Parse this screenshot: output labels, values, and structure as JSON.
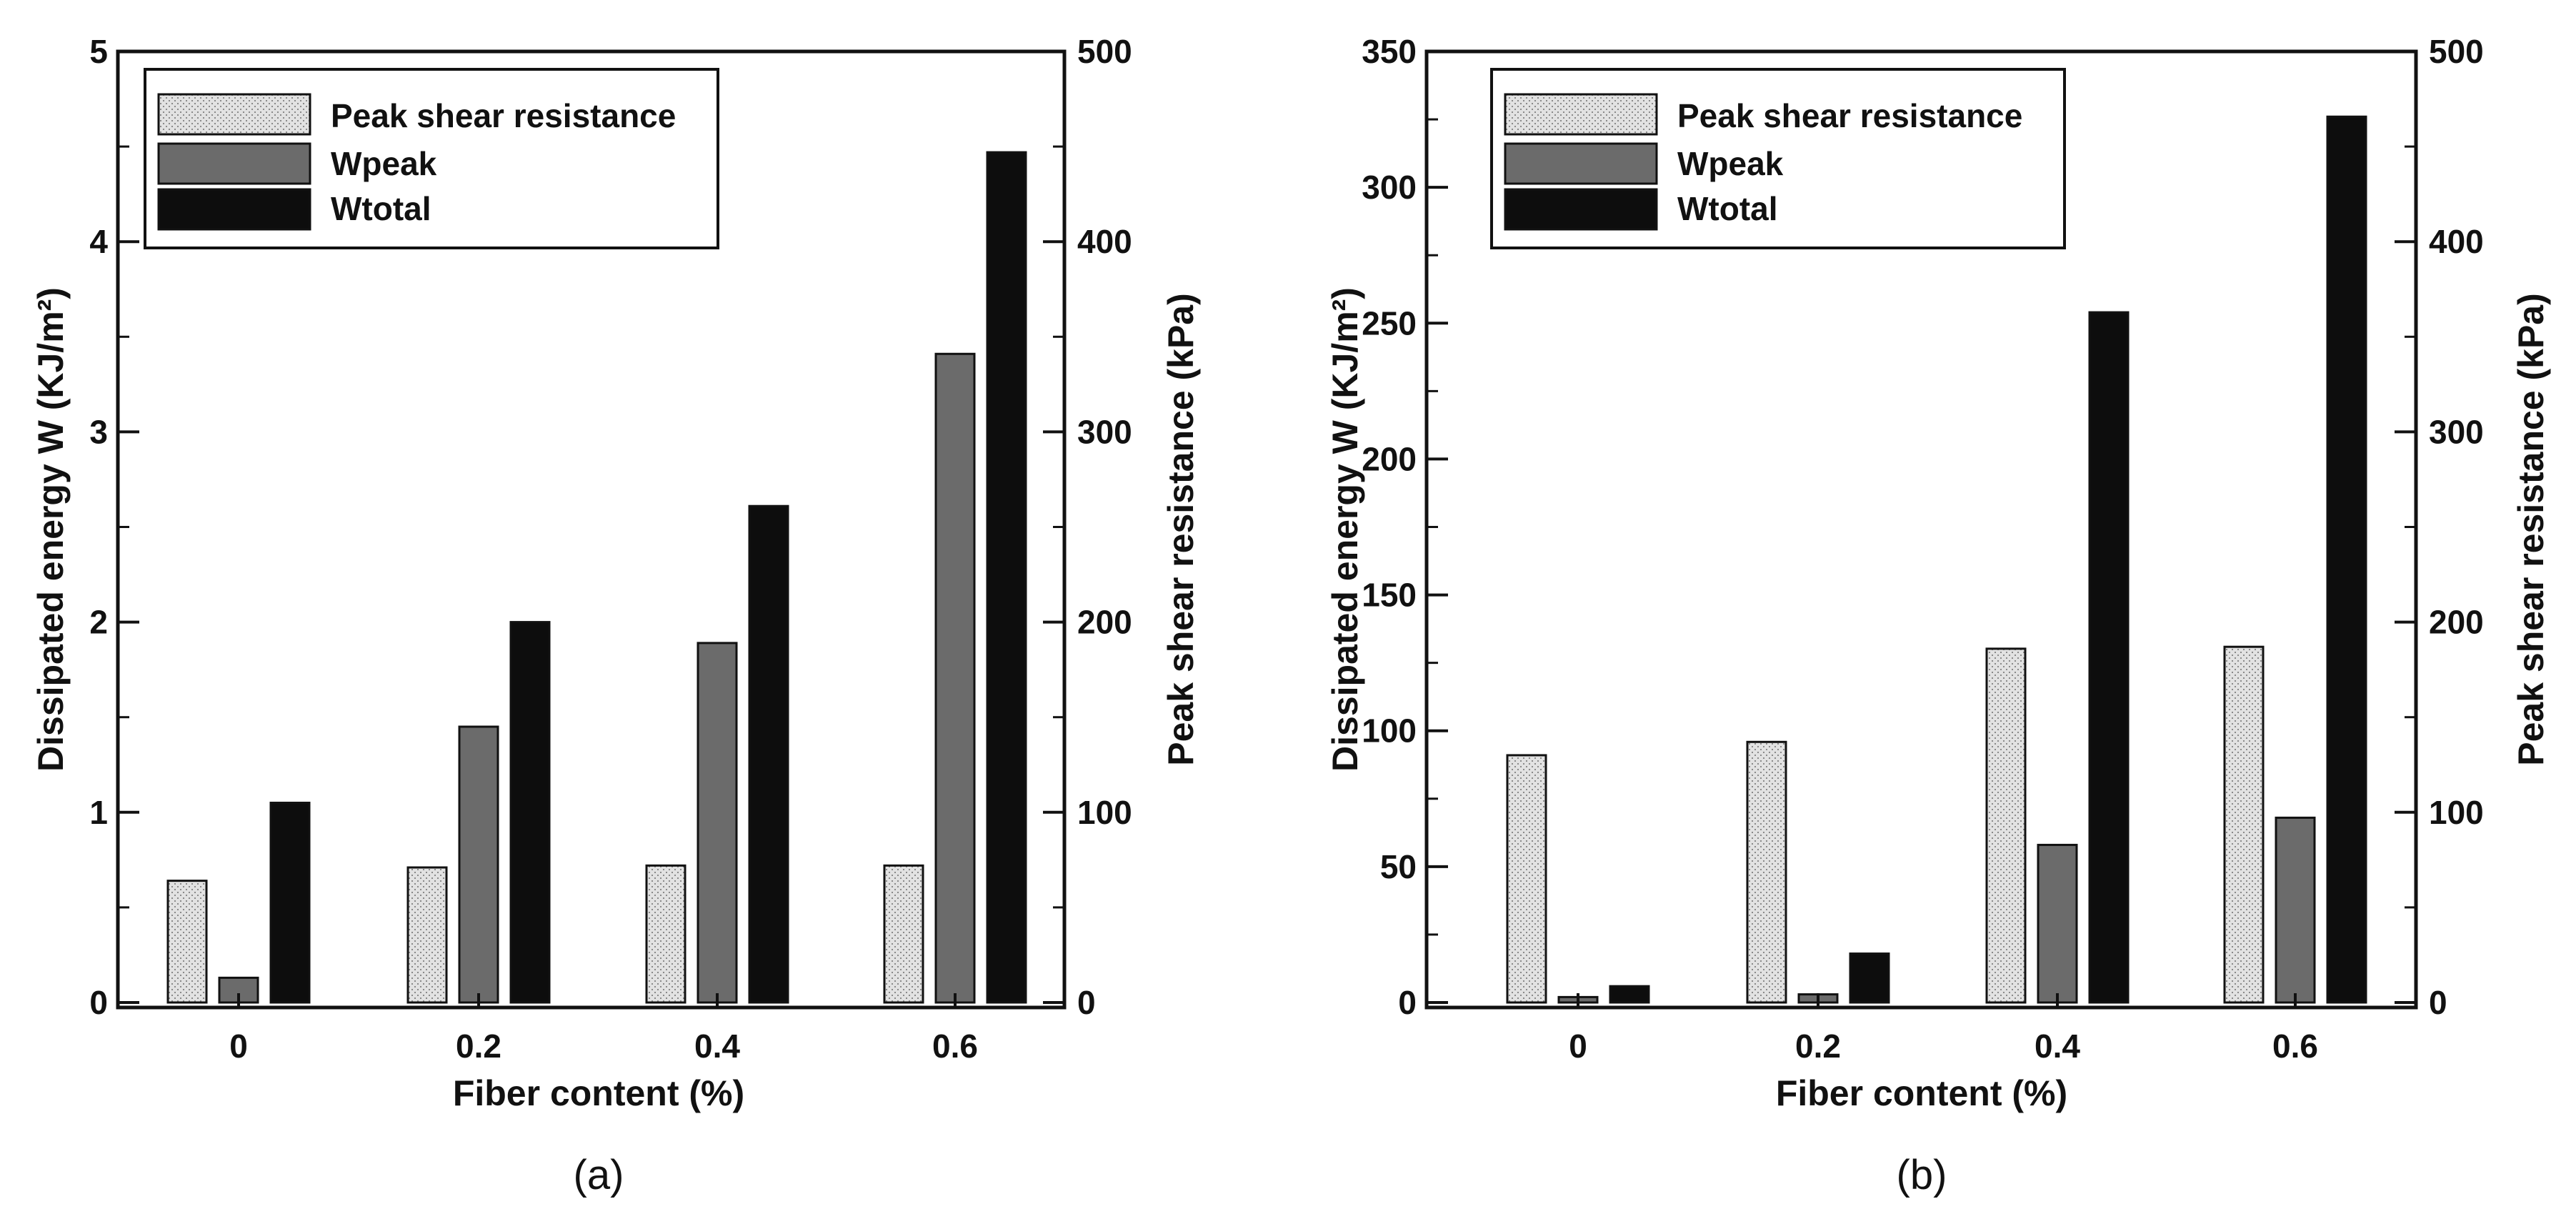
{
  "colors": {
    "peak_shear_resistance": "#e2e2e2",
    "wpeak": "#6b6b6b",
    "wtotal": "#0d0d0d",
    "axis": "#111111"
  },
  "chart_data": [
    {
      "type": "bar",
      "caption": "(a)",
      "categories": [
        "0",
        "0.2",
        "0.4",
        "0.6"
      ],
      "xlabel": "Fiber content (%)",
      "ylabel": "Dissipated energy W (KJ/m²)",
      "ylabel_right": "Peak shear resistance (kPa)",
      "ylim": [
        0,
        5
      ],
      "yticks": [
        "0",
        "1",
        "2",
        "3",
        "4",
        "5"
      ],
      "ylim_right": [
        0,
        500
      ],
      "yticks_right": [
        "0",
        "100",
        "200",
        "300",
        "400",
        "500"
      ],
      "legend": [
        "Peak shear resistance",
        "Wpeak",
        "Wtotal"
      ],
      "legend_position": "top-left",
      "series": [
        {
          "name": "Peak shear resistance",
          "axis": "right",
          "values": [
            64,
            71,
            72,
            72
          ]
        },
        {
          "name": "Wpeak",
          "axis": "left",
          "values": [
            0.13,
            1.45,
            1.89,
            3.41
          ]
        },
        {
          "name": "Wtotal",
          "axis": "left",
          "values": [
            1.05,
            2.0,
            2.61,
            4.47
          ]
        }
      ]
    },
    {
      "type": "bar",
      "caption": "(b)",
      "categories": [
        "0",
        "0.2",
        "0.4",
        "0.6"
      ],
      "xlabel": "Fiber content (%)",
      "ylabel": "Dissipated energy W (KJ/m²)",
      "ylabel_right": "Peak shear resistance (kPa)",
      "ylim": [
        0,
        350
      ],
      "yticks": [
        "0",
        "50",
        "100",
        "150",
        "200",
        "250",
        "300",
        "350"
      ],
      "ylim_right": [
        0,
        500
      ],
      "yticks_right": [
        "0",
        "100",
        "200",
        "300",
        "400",
        "500"
      ],
      "legend": [
        "Peak shear resistance",
        "Wpeak",
        "Wtotal"
      ],
      "legend_position": "top-left",
      "series": [
        {
          "name": "Peak shear resistance",
          "axis": "right",
          "values": [
            130,
            137,
            186,
            187
          ]
        },
        {
          "name": "Wpeak",
          "axis": "left",
          "values": [
            2,
            3,
            58,
            68
          ]
        },
        {
          "name": "Wtotal",
          "axis": "left",
          "values": [
            6,
            18,
            254,
            326
          ]
        }
      ]
    }
  ]
}
